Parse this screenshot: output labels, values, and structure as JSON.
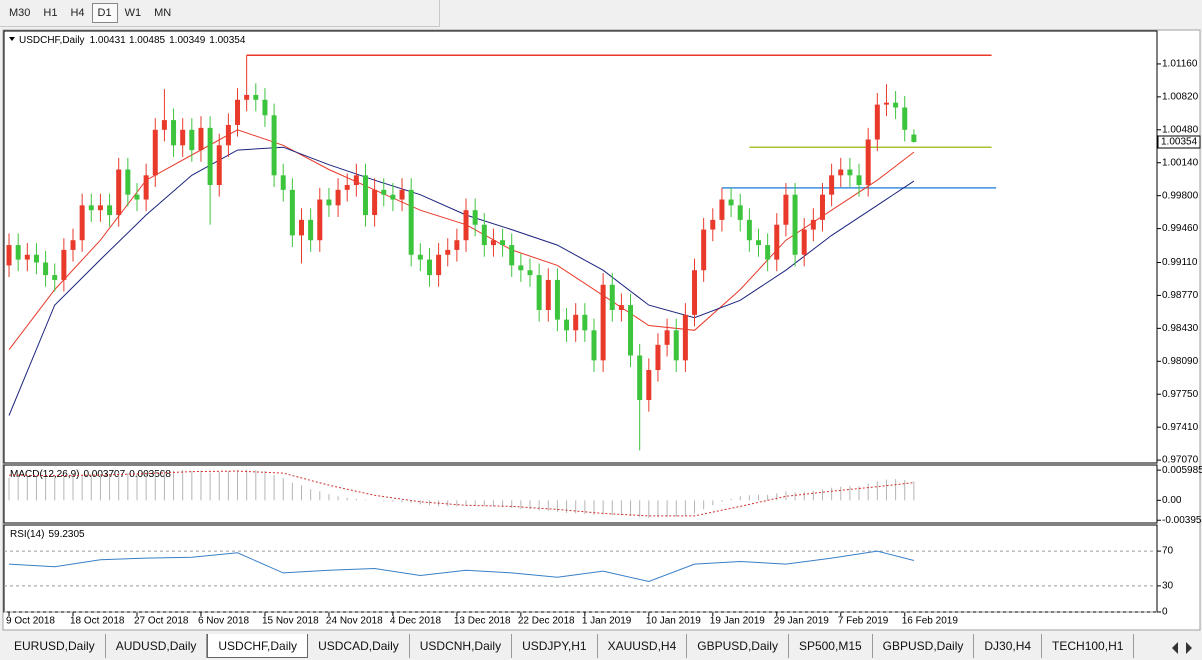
{
  "toolbar": {
    "items": [
      "M30",
      "H1",
      "H4",
      "D1",
      "W1",
      "MN"
    ],
    "active": "D1"
  },
  "chart_data": [
    {
      "type": "candlestick",
      "title": "USDCHF,Daily",
      "header_values": [
        1.00431,
        1.00485,
        1.00349,
        1.00354
      ],
      "up_color": "#e8392a",
      "down_color": "#3cc43c",
      "xlim": [
        -0.55,
        125.6
      ],
      "xticks": [
        {
          "value": 0,
          "label": "9 Oct 2018"
        },
        {
          "value": 7,
          "label": "18 Oct 2018"
        },
        {
          "value": 14,
          "label": "27 Oct 2018"
        },
        {
          "value": 21,
          "label": "6 Nov 2018"
        },
        {
          "value": 28,
          "label": "15 Nov 2018"
        },
        {
          "value": 35,
          "label": "24 Nov 2018"
        },
        {
          "value": 42,
          "label": "4 Dec 2018"
        },
        {
          "value": 49,
          "label": "13 Dec 2018"
        },
        {
          "value": 56,
          "label": "22 Dec 2018"
        },
        {
          "value": 63,
          "label": "1 Jan 2019"
        },
        {
          "value": 70,
          "label": "10 Jan 2019"
        },
        {
          "value": 77,
          "label": "19 Jan 2019"
        },
        {
          "value": 84,
          "label": "29 Jan 2019"
        },
        {
          "value": 91,
          "label": "7 Feb 2019"
        },
        {
          "value": 98,
          "label": "16 Feb 2019"
        }
      ],
      "ylim": [
        0.9704,
        1.015
      ],
      "yticks": [
        {
          "value": 1.0116,
          "label": "1.01160"
        },
        {
          "value": 1.0082,
          "label": "1.00820"
        },
        {
          "value": 1.0048,
          "label": "1.00480"
        },
        {
          "value": 1.0014,
          "label": "1.00140"
        },
        {
          "value": 0.998,
          "label": "0.99800"
        },
        {
          "value": 0.9946,
          "label": "0.99460"
        },
        {
          "value": 0.9911,
          "label": "0.99110"
        },
        {
          "value": 0.9877,
          "label": "0.98770"
        },
        {
          "value": 0.9843,
          "label": "0.98430"
        },
        {
          "value": 0.9809,
          "label": "0.98090"
        },
        {
          "value": 0.9775,
          "label": "0.97750"
        },
        {
          "value": 0.9741,
          "label": "0.97410"
        },
        {
          "value": 0.9707,
          "label": "0.97070"
        }
      ],
      "open": [
        0.9908,
        0.9929,
        0.9914,
        0.9919,
        0.9911,
        0.9898,
        0.9893,
        0.9924,
        0.9934,
        0.997,
        0.9965,
        0.997,
        0.996,
        1.0007,
        0.9981,
        0.9976,
        1.0001,
        1.0048,
        1.0058,
        1.0032,
        1.0048,
        1.0027,
        1.005,
        0.9991,
        1.0032,
        1.0053,
        1.0079,
        1.0084,
        1.0079,
        1.0063,
        1.0001,
        0.9986,
        0.9939,
        0.9955,
        0.9934,
        0.9976,
        0.997,
        0.9986,
        0.9991,
        1.0001,
        0.996,
        0.9986,
        0.9981,
        0.9976,
        0.9986,
        0.9919,
        0.9914,
        0.9898,
        0.9919,
        0.9924,
        0.9934,
        0.9965,
        0.995,
        0.9929,
        0.9934,
        0.9929,
        0.9908,
        0.9903,
        0.9898,
        0.9862,
        0.9893,
        0.9852,
        0.9841,
        0.9857,
        0.9841,
        0.981,
        0.9888,
        0.9862,
        0.9867,
        0.9815,
        0.9769,
        0.98,
        0.9826,
        0.9841,
        0.981,
        0.9857,
        0.9903,
        0.9945,
        0.9955,
        0.9976,
        0.997,
        0.9955,
        0.9934,
        0.9929,
        0.9914,
        0.995,
        0.9981,
        0.9919,
        0.9945,
        0.9955,
        0.9981,
        1.0001,
        1.0007,
        1.0001,
        0.9991,
        1.0038,
        1.0074,
        1.0076,
        1.0071,
        1.00431
      ],
      "high": [
        0.9941,
        0.9941,
        0.9931,
        0.9931,
        0.9923,
        0.991,
        0.9936,
        0.9946,
        0.9982,
        0.9982,
        0.9982,
        0.9982,
        1.0019,
        1.0019,
        0.9993,
        1.0013,
        1.006,
        1.009,
        1.007,
        1.006,
        1.006,
        1.0062,
        1.0062,
        1.0044,
        1.0065,
        1.0091,
        1.0125,
        1.0096,
        1.0091,
        1.0075,
        1.0013,
        0.9998,
        0.9967,
        0.9967,
        0.9988,
        0.9988,
        0.9998,
        1.0003,
        1.0013,
        1.0013,
        0.9998,
        0.9998,
        0.9993,
        0.9998,
        0.9998,
        0.9931,
        0.9926,
        0.9931,
        0.9936,
        0.9946,
        0.9977,
        0.9977,
        0.9962,
        0.9946,
        0.9946,
        0.9941,
        0.992,
        0.9915,
        0.991,
        0.9905,
        0.9905,
        0.9864,
        0.9869,
        0.9869,
        0.9853,
        0.99,
        0.99,
        0.9879,
        0.9879,
        0.9827,
        0.9812,
        0.9838,
        0.9853,
        0.9853,
        0.9869,
        0.9915,
        0.9957,
        0.9967,
        0.9988,
        0.9988,
        0.9982,
        0.9967,
        0.9946,
        0.9941,
        0.9962,
        0.9993,
        0.9993,
        0.9957,
        0.9967,
        0.9993,
        1.0013,
        1.0019,
        1.0019,
        1.0013,
        1.005,
        1.0086,
        1.0095,
        1.0088,
        1.0083,
        1.00485
      ],
      "low": [
        0.9896,
        0.9902,
        0.9902,
        0.9899,
        0.9886,
        0.9881,
        0.9881,
        0.9912,
        0.9922,
        0.9953,
        0.9953,
        0.9948,
        0.9948,
        0.9969,
        0.9964,
        0.9964,
        0.9989,
        1.0036,
        1.002,
        1.002,
        1.0015,
        1.0015,
        0.995,
        0.9979,
        1.002,
        1.0041,
        1.0067,
        1.0067,
        1.0051,
        0.9989,
        0.9974,
        0.9927,
        0.991,
        0.9922,
        0.9922,
        0.9958,
        0.9958,
        0.9974,
        0.9979,
        0.9948,
        0.9948,
        0.9969,
        0.9964,
        0.9964,
        0.9907,
        0.9902,
        0.9886,
        0.9886,
        0.9907,
        0.9912,
        0.9922,
        0.9938,
        0.9917,
        0.9917,
        0.9917,
        0.9896,
        0.9891,
        0.9886,
        0.985,
        0.985,
        0.984,
        0.9829,
        0.9829,
        0.9829,
        0.9798,
        0.9798,
        0.985,
        0.985,
        0.9803,
        0.9717,
        0.9757,
        0.9788,
        0.9814,
        0.9798,
        0.9798,
        0.9845,
        0.9891,
        0.9933,
        0.9943,
        0.9958,
        0.9943,
        0.9922,
        0.9917,
        0.9902,
        0.9902,
        0.9938,
        0.9907,
        0.9907,
        0.9933,
        0.9943,
        0.9969,
        0.9989,
        0.9989,
        0.9979,
        0.9979,
        1.0026,
        1.0062,
        1.0059,
        1.0036,
        1.00349
      ],
      "close": [
        0.9929,
        0.9914,
        0.9919,
        0.9911,
        0.9898,
        0.9893,
        0.9924,
        0.9934,
        0.997,
        0.9965,
        0.997,
        0.996,
        1.0007,
        0.9981,
        0.9976,
        1.0001,
        1.0048,
        1.0058,
        1.0032,
        1.0048,
        1.0027,
        1.005,
        0.9991,
        1.0032,
        1.0053,
        1.0079,
        1.0084,
        1.0079,
        1.0063,
        1.0001,
        0.9986,
        0.9939,
        0.9955,
        0.9934,
        0.9976,
        0.997,
        0.9986,
        0.9991,
        1.0001,
        0.996,
        0.9986,
        0.9981,
        0.9976,
        0.9986,
        0.9919,
        0.9914,
        0.9898,
        0.9919,
        0.9924,
        0.9934,
        0.9965,
        0.995,
        0.9929,
        0.9934,
        0.9929,
        0.9908,
        0.9903,
        0.9898,
        0.9862,
        0.9893,
        0.9852,
        0.9841,
        0.9857,
        0.9841,
        0.981,
        0.9888,
        0.9862,
        0.9867,
        0.9815,
        0.9769,
        0.98,
        0.9826,
        0.9841,
        0.981,
        0.9857,
        0.9903,
        0.9945,
        0.9955,
        0.9976,
        0.997,
        0.9955,
        0.9934,
        0.9929,
        0.9914,
        0.995,
        0.9981,
        0.9919,
        0.9945,
        0.9955,
        0.9981,
        1.0001,
        1.0007,
        1.0001,
        0.9991,
        1.0038,
        1.0074,
        1.0076,
        1.0071,
        1.0048,
        1.00354
      ],
      "series": [
        {
          "color": "#e8392a",
          "x": [
            0,
            5,
            10,
            15,
            20,
            25,
            30,
            35,
            40,
            45,
            50,
            55,
            60,
            65,
            70,
            75,
            80,
            85,
            90,
            95,
            99
          ],
          "values": [
            0.9821,
            0.9883,
            0.9934,
            0.9996,
            1.0022,
            1.0048,
            1.0032,
            1.0007,
            0.9986,
            0.9965,
            0.995,
            0.9924,
            0.9908,
            0.9877,
            0.9846,
            0.9841,
            0.9883,
            0.9934,
            0.9965,
            0.9996,
            1.0025
          ]
        },
        {
          "color": "#1a237e",
          "x": [
            0,
            5,
            10,
            15,
            20,
            25,
            30,
            35,
            40,
            45,
            50,
            55,
            60,
            65,
            70,
            75,
            80,
            85,
            90,
            95,
            99
          ],
          "values": [
            0.9753,
            0.9867,
            0.9914,
            0.996,
            1.0001,
            1.0027,
            1.003,
            1.0012,
            0.9996,
            0.9981,
            0.996,
            0.9945,
            0.9929,
            0.9903,
            0.9867,
            0.9854,
            0.9872,
            0.9903,
            0.9939,
            0.997,
            0.9995
          ]
        }
      ],
      "levels": [
        {
          "value": 1.0125,
          "color": "#e8392a",
          "from": 26,
          "to": 107.5
        },
        {
          "value": 1.003,
          "color": "#a9c234",
          "from": 81,
          "to": 107.5
        },
        {
          "value": 0.9988,
          "color": "#3b8fdc",
          "from": 78,
          "to": 108
        }
      ]
    },
    {
      "type": "macd",
      "title": "MACD(12,26,9)",
      "bar_color": "#b4b4b4",
      "signal_color": "#d03030",
      "ylim": [
        -0.0045,
        0.007
      ],
      "yticks": [
        0.005985,
        {
          "value": 0,
          "label": "0.00"
        },
        -0.003954
      ],
      "histogram": [
        0.0045,
        0.0046,
        0.0047,
        0.0047,
        0.0046,
        0.0045,
        0.0046,
        0.0047,
        0.005,
        0.0051,
        0.0052,
        0.0052,
        0.0055,
        0.0055,
        0.0054,
        0.0055,
        0.0058,
        0.006,
        0.0059,
        0.006,
        0.0058,
        0.0059,
        0.0055,
        0.0056,
        0.0058,
        0.006,
        0.0061,
        0.006,
        0.0058,
        0.005,
        0.0044,
        0.0035,
        0.003,
        0.0022,
        0.0018,
        0.0012,
        0.0008,
        0.0005,
        0.0003,
        0.0001,
        0,
        -0.0002,
        -0.0003,
        -0.0004,
        -0.0005,
        -0.0008,
        -0.001,
        -0.0012,
        -0.0012,
        -0.0012,
        -0.0011,
        -0.001,
        -0.0011,
        -0.0012,
        -0.0013,
        -0.0015,
        -0.0017,
        -0.0018,
        -0.002,
        -0.0021,
        -0.0023,
        -0.0025,
        -0.0026,
        -0.0027,
        -0.0029,
        -0.0028,
        -0.0029,
        -0.003,
        -0.0031,
        -0.0034,
        -0.0035,
        -0.0034,
        -0.0033,
        -0.0033,
        -0.0031,
        -0.0026,
        -0.0018,
        -0.001,
        -0.0003,
        0.0003,
        0.0008,
        0.001,
        0.0011,
        0.0011,
        0.0014,
        0.0018,
        0.0016,
        0.0017,
        0.0019,
        0.0022,
        0.0025,
        0.0027,
        0.0028,
        0.0028,
        0.0033,
        0.0038,
        0.0041,
        0.0042,
        0.004,
        0.003707
      ],
      "x": [
        0,
        5,
        10,
        15,
        20,
        25,
        30,
        35,
        40,
        45,
        50,
        55,
        60,
        65,
        70,
        75,
        80,
        85,
        90,
        95,
        99
      ],
      "signal": [
        0.005,
        0.0049,
        0.005,
        0.0053,
        0.0057,
        0.0058,
        0.0054,
        0.003,
        0.001,
        -0.0003,
        -0.001,
        -0.0012,
        -0.0018,
        -0.0026,
        -0.0031,
        -0.0031,
        -0.0012,
        0.0008,
        0.0018,
        0.0027,
        0.003508
      ]
    },
    {
      "type": "line",
      "title": "RSI(14)",
      "color": "#3a7fc8",
      "ylim": [
        0,
        100
      ],
      "yticks": [
        70,
        30,
        0
      ],
      "grid": true,
      "x": [
        0,
        5,
        10,
        15,
        20,
        25,
        30,
        35,
        40,
        45,
        50,
        55,
        60,
        65,
        70,
        75,
        80,
        85,
        90,
        95,
        99
      ],
      "values": [
        55,
        52,
        60,
        62,
        63,
        68,
        45,
        48,
        50,
        42,
        48,
        45,
        40,
        47,
        35,
        55,
        58,
        55,
        62,
        70,
        59.2305
      ]
    }
  ],
  "tabs": {
    "items": [
      "EURUSD,Daily",
      "AUDUSD,Daily",
      "USDCHF,Daily",
      "USDCAD,Daily",
      "USDCNH,Daily",
      "USDJPY,H1",
      "XAUUSD,H4",
      "GBPUSD,Daily",
      "SP500,M15",
      "GBPUSD,Daily",
      "DJ30,H4",
      "TECH100,H1"
    ],
    "active": "USDCHF,Daily"
  }
}
